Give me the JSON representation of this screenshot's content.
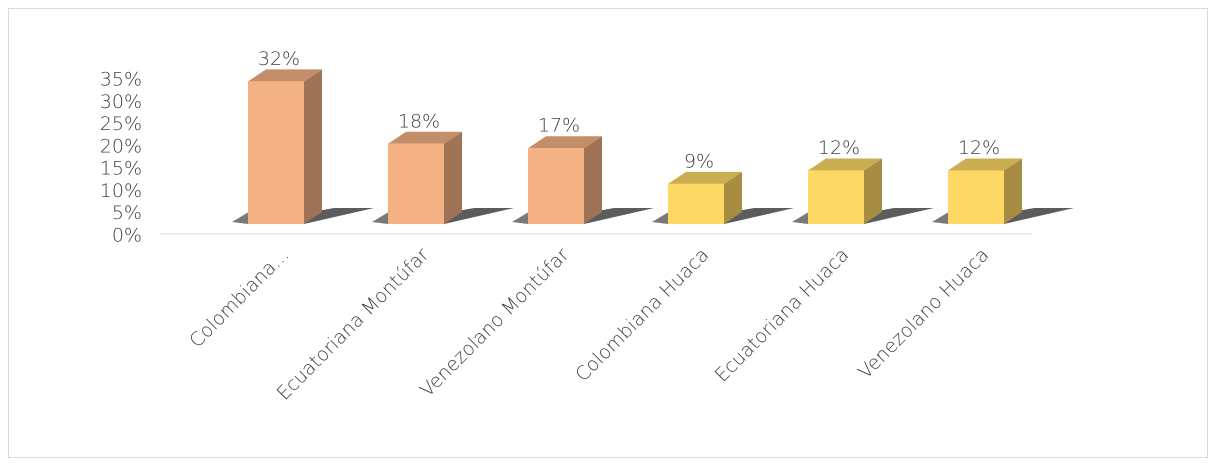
{
  "chart_data": {
    "type": "bar3d",
    "categories": [
      "Colombiana...",
      "Ecuatoriana Montúfar",
      "Venezolano Montúfar",
      "Colombiana Huaca",
      "Ecuatoriana Huaca",
      "Venezolano Huaca"
    ],
    "values": [
      32,
      18,
      17,
      9,
      12,
      12
    ],
    "value_labels": [
      "32%",
      "18%",
      "17%",
      "9%",
      "12%",
      "12%"
    ],
    "colors": [
      "#f4b183",
      "#f4b183",
      "#f4b183",
      "#ffd966",
      "#ffd966",
      "#ffd966"
    ],
    "ylim": [
      0,
      35
    ],
    "yticks": [
      {
        "value": 0,
        "label": "0%"
      },
      {
        "value": 5,
        "label": "5%"
      },
      {
        "value": 10,
        "label": "10%"
      },
      {
        "value": 15,
        "label": "15%"
      },
      {
        "value": 20,
        "label": "20%"
      },
      {
        "value": 25,
        "label": "25%"
      },
      {
        "value": 30,
        "label": "30%"
      },
      {
        "value": 35,
        "label": "35%"
      }
    ]
  }
}
